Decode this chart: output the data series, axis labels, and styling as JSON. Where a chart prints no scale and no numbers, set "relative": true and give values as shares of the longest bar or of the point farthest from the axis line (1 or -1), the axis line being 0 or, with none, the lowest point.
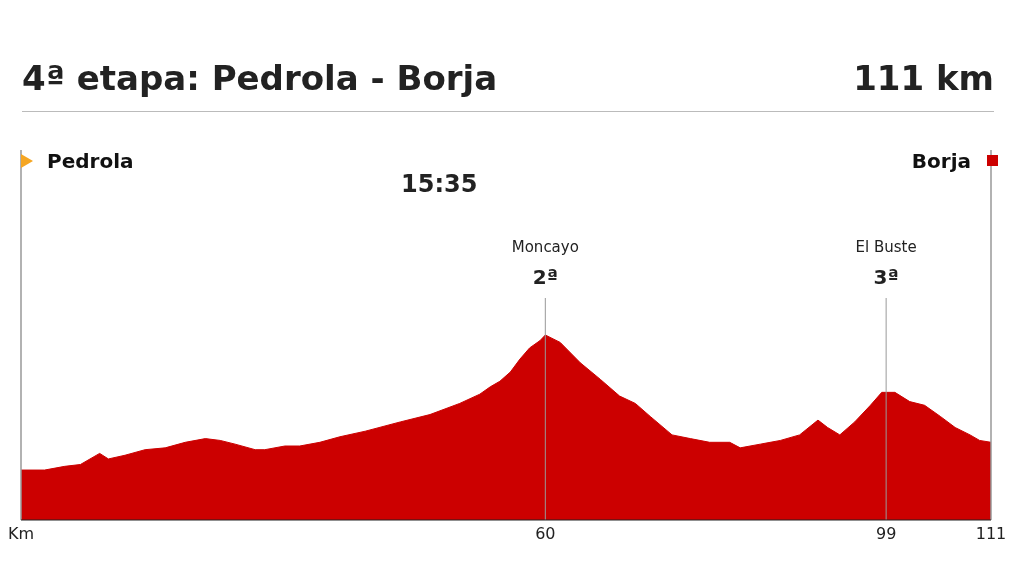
{
  "chart_data": {
    "type": "area",
    "title": "4ª etapa: Pedrola - Borja",
    "subtitle": "111 km",
    "relative": true,
    "x": [
      0,
      2.7,
      5.0,
      6.8,
      9.0,
      10.0,
      11.9,
      14.2,
      16.5,
      18.8,
      21.1,
      22.8,
      24.5,
      26.8,
      27.9,
      30.2,
      31.9,
      34.2,
      36.5,
      39.4,
      43.4,
      46.8,
      50.2,
      52.5,
      53.7,
      54.8,
      56.0,
      57.1,
      58.2,
      59.4,
      60,
      61.7,
      64.0,
      66.3,
      68.5,
      70.3,
      72.0,
      74.5,
      76.6,
      78.8,
      81.1,
      82.3,
      84.6,
      86.9,
      89.1,
      91.2,
      92.3,
      93.7,
      95.4,
      97.2,
      98.5,
      100.0,
      101.7,
      103.4,
      105.2,
      106.9,
      108.6,
      109.7,
      111
    ],
    "series": [
      {
        "color": "#cc0000",
        "values": [
          0.27,
          0.27,
          0.29,
          0.3,
          0.36,
          0.33,
          0.35,
          0.38,
          0.39,
          0.42,
          0.44,
          0.43,
          0.41,
          0.38,
          0.38,
          0.4,
          0.4,
          0.42,
          0.45,
          0.48,
          0.53,
          0.57,
          0.63,
          0.68,
          0.72,
          0.75,
          0.8,
          0.87,
          0.93,
          0.97,
          1,
          0.96,
          0.85,
          0.76,
          0.67,
          0.63,
          0.56,
          0.46,
          0.44,
          0.42,
          0.42,
          0.39,
          0.41,
          0.43,
          0.46,
          0.54,
          0.5,
          0.46,
          0.53,
          0.62,
          0.69,
          0.69,
          0.64,
          0.62,
          0.56,
          0.5,
          0.46,
          0.43,
          0.42
        ]
      }
    ],
    "xlim": [
      0,
      111
    ],
    "xticks": [
      {
        "value": 0,
        "label": "Km"
      },
      60,
      99,
      111
    ],
    "ref_lines": [
      {
        "axis": "x",
        "value": 0,
        "label": "Pedrola",
        "color": "#999999"
      },
      {
        "axis": "x",
        "value": 60,
        "label": "Moncayo\n2ª",
        "color": "#999999"
      },
      {
        "axis": "x",
        "value": 99,
        "label": "El Buste\n3ª",
        "color": "#999999"
      },
      {
        "axis": "x",
        "value": 111,
        "label": "Borja",
        "color": "#999999"
      }
    ],
    "annotations": [
      "15:35"
    ]
  }
}
